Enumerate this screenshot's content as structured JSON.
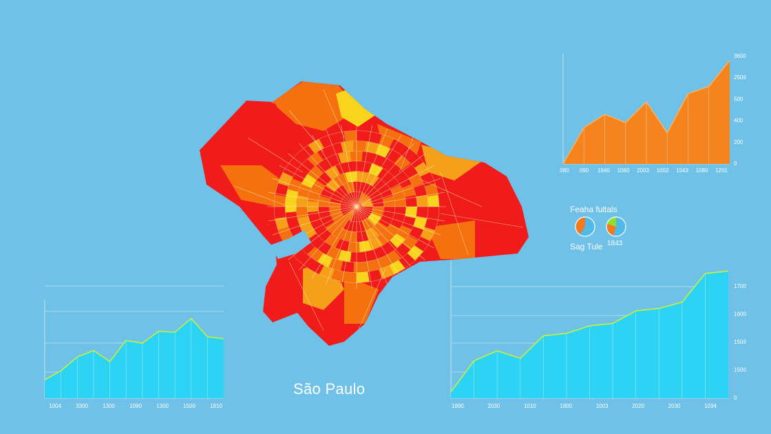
{
  "map": {
    "city_label": "São Paulo",
    "colors": {
      "red": "#f01c1c",
      "orange": "#f5710f",
      "amber": "#f6a019",
      "yellow": "#f8d51c",
      "line": "#fff2b0"
    }
  },
  "pie_legend": {
    "title": "Feaha fultals",
    "caption_left": "Sag Tule",
    "caption_right": "1843",
    "pies": [
      {
        "slices": [
          {
            "value": 0.6,
            "color": "#4fb9e8"
          },
          {
            "value": 0.4,
            "color": "#f07a22"
          }
        ]
      },
      {
        "slices": [
          {
            "value": 0.55,
            "color": "#4fb9e8"
          },
          {
            "value": 0.25,
            "color": "#f07a22"
          },
          {
            "value": 0.2,
            "color": "#8ee02b"
          }
        ]
      }
    ]
  },
  "chart_data": [
    {
      "type": "area",
      "color": "#f5841f",
      "x_tick_labels": [
        "080",
        "090",
        "1940",
        "1060",
        "2003",
        "1002",
        "1043",
        "1080",
        "1201"
      ],
      "y_tick_labels": [
        "0",
        "200",
        "400",
        "500",
        "2500",
        "3600"
      ],
      "values": [
        0.0,
        0.35,
        0.48,
        0.4,
        0.6,
        0.3,
        0.68,
        0.75,
        1.0
      ],
      "ylim": [
        0,
        1
      ]
    },
    {
      "type": "area",
      "color": "#2cd3f5",
      "x_tick_labels": [
        "1004",
        "3300",
        "1300",
        "1090",
        "1300",
        "1500",
        "1810"
      ],
      "y_tick_labels": [],
      "values": [
        0.2,
        0.3,
        0.45,
        0.52,
        0.4,
        0.63,
        0.6,
        0.73,
        0.72,
        0.87,
        0.67,
        0.65
      ],
      "ylim": [
        0,
        1
      ]
    },
    {
      "type": "area",
      "color": "#2cd3f5",
      "x_tick_labels": [
        "1890",
        "2030",
        "1010",
        "1800",
        "1003",
        "2020",
        "2030",
        "1034"
      ],
      "y_tick_labels": [
        "0",
        "1500",
        "1500",
        "1600",
        "1700"
      ],
      "values": [
        0.05,
        0.3,
        0.38,
        0.32,
        0.5,
        0.52,
        0.58,
        0.6,
        0.7,
        0.72,
        0.77,
        1.0,
        1.02
      ],
      "ylim": [
        0,
        1.05
      ]
    }
  ]
}
